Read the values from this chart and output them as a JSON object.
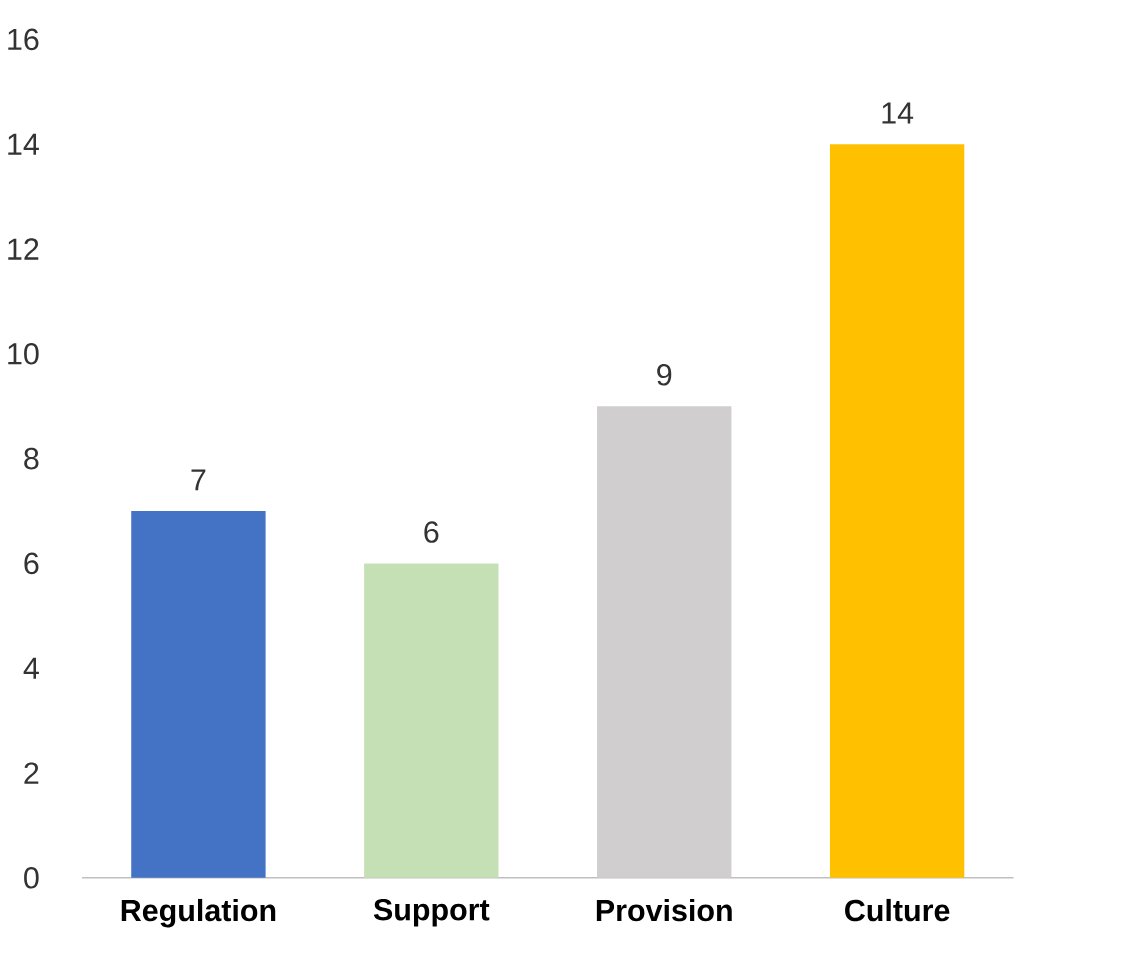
{
  "chart_data": {
    "type": "bar",
    "categories": [
      "Regulation",
      "Support",
      "Provision",
      "Culture"
    ],
    "values": [
      7,
      6,
      9,
      14
    ],
    "colors": [
      "#4472c4",
      "#c5e0b4",
      "#d0cece",
      "#ffc000"
    ],
    "ylim": [
      0,
      16
    ],
    "yticks": [
      0,
      2,
      4,
      6,
      8,
      10,
      12,
      14,
      16
    ],
    "data_labels": true
  }
}
